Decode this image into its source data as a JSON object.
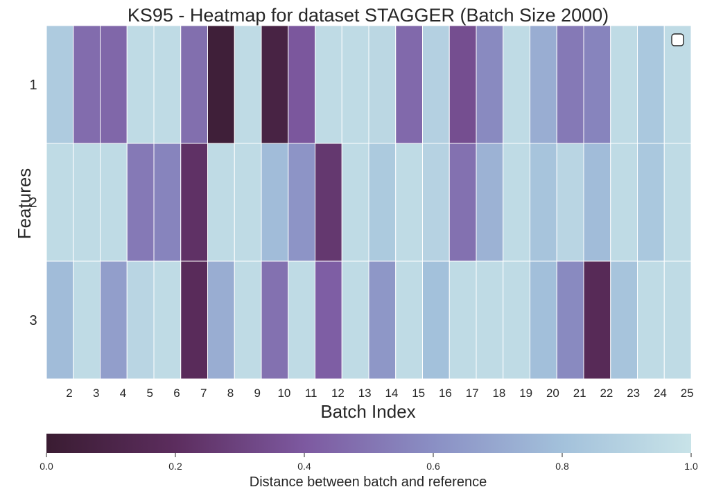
{
  "chart_data": {
    "type": "heatmap",
    "title": "KS95 - Heatmap for dataset STAGGER (Batch Size 2000)",
    "xlabel": "Batch Index",
    "ylabel": "Features",
    "x": [
      2,
      3,
      4,
      5,
      6,
      7,
      8,
      9,
      10,
      11,
      12,
      13,
      14,
      15,
      16,
      17,
      18,
      19,
      20,
      21,
      22,
      23,
      24,
      25
    ],
    "y": [
      1,
      2,
      3
    ],
    "values": [
      [
        0.86,
        0.47,
        0.45,
        0.95,
        0.95,
        0.48,
        0.03,
        0.95,
        0.08,
        0.39,
        0.95,
        0.95,
        0.93,
        0.46,
        0.89,
        0.35,
        0.58,
        0.95,
        0.72,
        0.52,
        0.56,
        0.95,
        0.84,
        0.95
      ],
      [
        0.95,
        0.95,
        0.95,
        0.52,
        0.56,
        0.22,
        0.95,
        0.95,
        0.78,
        0.62,
        0.25,
        0.95,
        0.85,
        0.95,
        0.9,
        0.49,
        0.74,
        0.95,
        0.82,
        0.92,
        0.78,
        0.95,
        0.84,
        0.95
      ],
      [
        0.78,
        0.95,
        0.66,
        0.92,
        0.95,
        0.18,
        0.72,
        0.95,
        0.49,
        0.95,
        0.42,
        0.95,
        0.63,
        0.95,
        0.8,
        0.95,
        0.95,
        0.95,
        0.79,
        0.58,
        0.17,
        0.82,
        0.95,
        0.95
      ]
    ],
    "colorbar": {
      "label": "Distance between batch and reference",
      "range": [
        0.0,
        1.0
      ],
      "ticks": [
        "0.0",
        "0.2",
        "0.4",
        "0.6",
        "0.8",
        "1.0"
      ],
      "colors": [
        "#3a1c32",
        "#5c2d5e",
        "#7d59a0",
        "#8a8fc4",
        "#a3c1db",
        "#c8e3e8"
      ]
    },
    "legend": {
      "position": "top-right",
      "entries": []
    },
    "grid": false
  }
}
